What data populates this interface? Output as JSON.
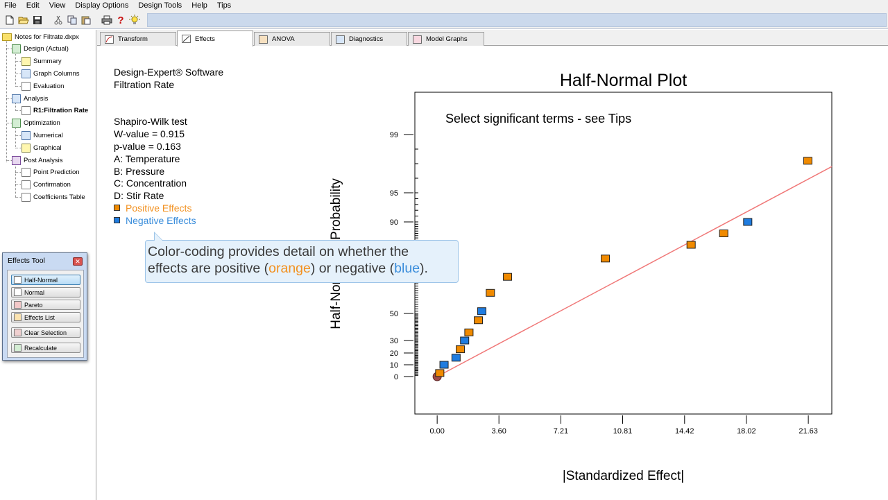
{
  "menu": [
    "File",
    "Edit",
    "View",
    "Display Options",
    "Design Tools",
    "Help",
    "Tips"
  ],
  "toolbar": {
    "icons": [
      "new-icon",
      "open-icon",
      "save-icon",
      "cut-icon",
      "copy-icon",
      "paste-icon",
      "print-icon",
      "help-icon",
      "tips-icon"
    ],
    "help_glyph": "?"
  },
  "tree": {
    "root": "Notes for Filtrate.dxpx",
    "items": [
      {
        "label": "Design (Actual)"
      },
      {
        "label": "Summary"
      },
      {
        "label": "Graph Columns"
      },
      {
        "label": "Evaluation"
      },
      {
        "label": "Analysis"
      },
      {
        "label": "R1:Filtration Rate"
      },
      {
        "label": "Optimization"
      },
      {
        "label": "Numerical"
      },
      {
        "label": "Graphical"
      },
      {
        "label": "Post Analysis"
      },
      {
        "label": "Point Prediction"
      },
      {
        "label": "Confirmation"
      },
      {
        "label": "Coefficients Table"
      }
    ]
  },
  "tabs": [
    {
      "label": "Transform"
    },
    {
      "label": "Effects"
    },
    {
      "label": "ANOVA"
    },
    {
      "label": "Diagnostics"
    },
    {
      "label": "Model Graphs"
    }
  ],
  "info": {
    "line1": "Design-Expert® Software",
    "line2": "Filtration Rate",
    "test_name": "Shapiro-Wilk test",
    "w_value": "W-value = 0.915",
    "p_value": "p-value = 0.163",
    "factor_a": "A: Temperature",
    "factor_b": "B: Pressure",
    "factor_c": "C: Concentration",
    "factor_d": "D: Stir Rate",
    "positive_label": "Positive Effects",
    "negative_label": "Negative Effects"
  },
  "callout": {
    "line1": "Color-coding provides detail on whether the",
    "line2_prefix": "effects are positive (",
    "word_orange": "orange",
    "line2_middle": ") or negative (",
    "word_blue": "blue",
    "line2_suffix": ")."
  },
  "effects_tool": {
    "title": "Effects Tool",
    "buttons": [
      {
        "label": "Half-Normal",
        "selected": true
      },
      {
        "label": "Normal",
        "selected": false
      },
      {
        "label": "Pareto",
        "selected": false
      },
      {
        "label": "Effects List",
        "selected": false
      },
      {
        "label": "Clear Selection",
        "selected": false
      },
      {
        "label": "Recalculate",
        "selected": false
      }
    ]
  },
  "colors": {
    "positive": "#f08a00",
    "negative": "#1f7ce0",
    "fit_line": "#f07878",
    "origin": "#9e4a4a",
    "positive_text": "#f29120",
    "negative_text": "#3a8ddb"
  },
  "chart_data": {
    "type": "scatter",
    "title": "Half-Normal Plot",
    "annotation": "Select significant terms - see Tips",
    "xlabel": "|Standardized Effect|",
    "ylabel": "Half-Normal % Probability",
    "x_ticks": [
      "0.00",
      "3.60",
      "7.21",
      "10.81",
      "14.42",
      "18.02",
      "21.63"
    ],
    "x_tick_values": [
      0.0,
      3.6,
      7.21,
      10.81,
      14.42,
      18.02,
      21.63
    ],
    "y_ticks": [
      "0",
      "10",
      "20",
      "30",
      "50",
      "90",
      "95",
      "99"
    ],
    "y_tick_values": [
      0,
      10,
      20,
      30,
      50,
      90,
      95,
      99
    ],
    "xlim": [
      -1.3,
      23.0
    ],
    "fit_line": {
      "x0": 0.0,
      "y0": 0.0,
      "x1": 23.0,
      "y1": 96.8
    },
    "series": [
      {
        "name": "Positive Effects",
        "points": [
          {
            "x": 0.15,
            "y": 3
          },
          {
            "x": 1.35,
            "y": 23
          },
          {
            "x": 1.85,
            "y": 36
          },
          {
            "x": 2.4,
            "y": 45
          },
          {
            "x": 3.1,
            "y": 59
          },
          {
            "x": 4.1,
            "y": 66
          },
          {
            "x": 9.8,
            "y": 74
          },
          {
            "x": 14.8,
            "y": 80
          },
          {
            "x": 16.7,
            "y": 85
          },
          {
            "x": 21.6,
            "y": 97.2
          }
        ]
      },
      {
        "name": "Negative Effects",
        "points": [
          {
            "x": 0.4,
            "y": 10
          },
          {
            "x": 1.1,
            "y": 16
          },
          {
            "x": 1.6,
            "y": 30
          },
          {
            "x": 2.6,
            "y": 51
          },
          {
            "x": 18.1,
            "y": 90
          }
        ]
      }
    ],
    "origin_point": {
      "x": 0.0,
      "y": 0
    }
  }
}
